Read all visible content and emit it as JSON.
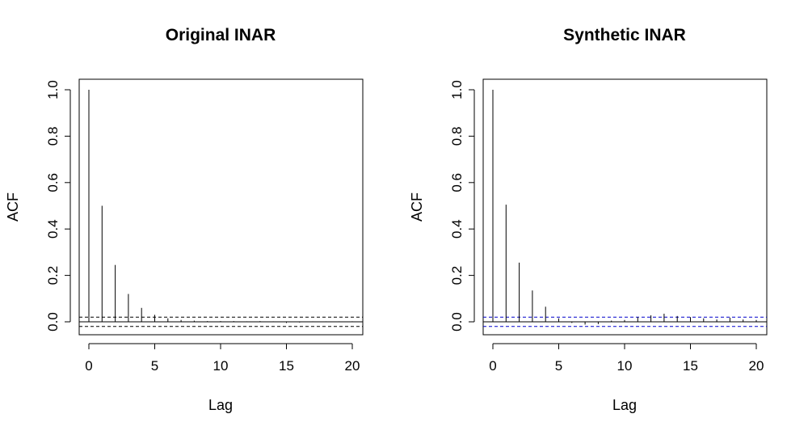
{
  "chart_data": [
    {
      "type": "bar",
      "title": "Original INAR",
      "xlabel": "Lag",
      "ylabel": "ACF",
      "xlim": [
        0,
        20
      ],
      "ylim": [
        -0.05,
        1.0
      ],
      "x_ticks": [
        "0",
        "5",
        "10",
        "15",
        "20"
      ],
      "y_ticks": [
        "0.0",
        "0.2",
        "0.4",
        "0.6",
        "0.8",
        "1.0"
      ],
      "lags": [
        0,
        1,
        2,
        3,
        4,
        5,
        6,
        7,
        8,
        9,
        10,
        11,
        12,
        13,
        14,
        15,
        16,
        17,
        18,
        19,
        20
      ],
      "values": [
        1.0,
        0.5,
        0.245,
        0.12,
        0.06,
        0.03,
        0.015,
        0.008,
        0.005,
        0.003,
        0.003,
        0.003,
        0.002,
        0.003,
        0.002,
        -0.005,
        -0.003,
        0.002,
        0.002,
        0.002,
        0.002
      ],
      "confidence_bound": 0.02,
      "confidence_color": "#000000"
    },
    {
      "type": "bar",
      "title": "Synthetic INAR",
      "xlabel": "Lag",
      "ylabel": "ACF",
      "xlim": [
        0,
        20
      ],
      "ylim": [
        -0.05,
        1.0
      ],
      "x_ticks": [
        "0",
        "5",
        "10",
        "15",
        "20"
      ],
      "y_ticks": [
        "0.0",
        "0.2",
        "0.4",
        "0.6",
        "0.8",
        "1.0"
      ],
      "lags": [
        0,
        1,
        2,
        3,
        4,
        5,
        6,
        7,
        8,
        9,
        10,
        11,
        12,
        13,
        14,
        15,
        16,
        17,
        18,
        19,
        20
      ],
      "values": [
        1.0,
        0.505,
        0.255,
        0.135,
        0.065,
        0.015,
        -0.005,
        -0.012,
        -0.01,
        0.005,
        0.008,
        0.02,
        0.028,
        0.035,
        0.025,
        0.02,
        0.015,
        0.01,
        0.018,
        0.01,
        0.008
      ],
      "confidence_bound": 0.02,
      "confidence_color": "#0000cc"
    }
  ]
}
